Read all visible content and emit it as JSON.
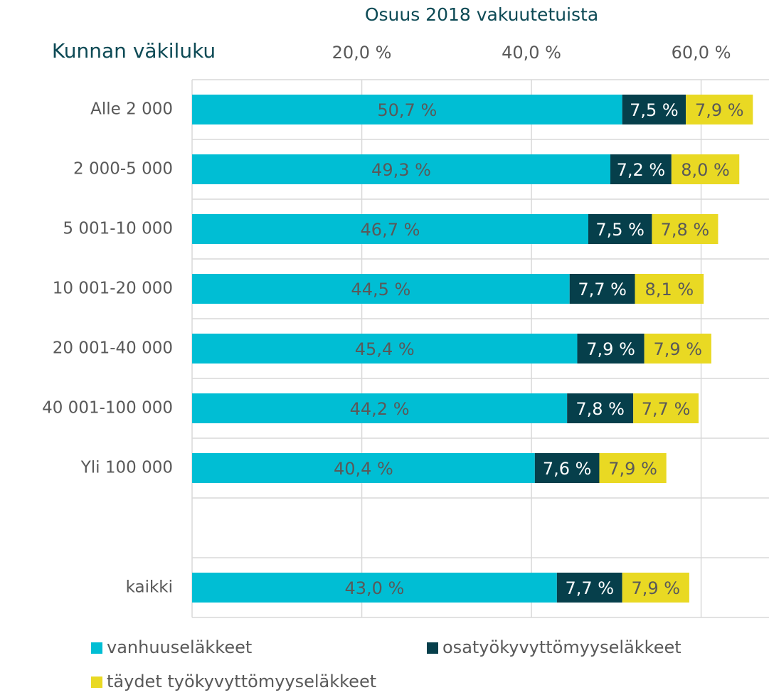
{
  "chart_data": {
    "type": "stacked_barh",
    "title": "Osuus 2018 vakuutetuista",
    "y_label": "Kunnan väkiluku",
    "categories": [
      "Alle 2 000",
      "2 000-5 000",
      "5 001-10 000",
      "10 001-20 000",
      "20 001-40 000",
      "40 001-100 000",
      "Yli 100 000",
      null,
      "kaikki"
    ],
    "series": [
      {
        "name": "vanhuuseläkkeet",
        "color": "#00bed4",
        "label_color": "#595959",
        "values": [
          50.7,
          49.3,
          46.7,
          44.5,
          45.4,
          44.2,
          40.4,
          null,
          43.0
        ],
        "value_labels": [
          "50,7 %",
          "49,3 %",
          "46,7 %",
          "44,5 %",
          "45,4 %",
          "44,2 %",
          "40,4 %",
          null,
          "43,0 %"
        ]
      },
      {
        "name": "osatyökyvyttömyyseläkkeet",
        "color": "#063f4b",
        "label_color": "#ffffff",
        "values": [
          7.5,
          7.2,
          7.5,
          7.7,
          7.9,
          7.8,
          7.6,
          null,
          7.7
        ],
        "value_labels": [
          "7,5 %",
          "7,2 %",
          "7,5 %",
          "7,7 %",
          "7,9 %",
          "7,8 %",
          "7,6 %",
          null,
          "7,7 %"
        ]
      },
      {
        "name": "täydet työkyvyttömyyseläkkeet",
        "color": "#e9d923",
        "label_color": "#595959",
        "values": [
          7.9,
          8.0,
          7.8,
          8.1,
          7.9,
          7.7,
          7.9,
          null,
          7.9
        ],
        "value_labels": [
          "7,9 %",
          "8,0 %",
          "7,8 %",
          "8,1 %",
          "7,9 %",
          "7,7 %",
          "7,9 %",
          null,
          "7,9 %"
        ]
      }
    ],
    "xlim": [
      0,
      68
    ],
    "xticks": [
      {
        "value": 20,
        "label": "20,0 %"
      },
      {
        "value": 40,
        "label": "40,0 %"
      },
      {
        "value": 60,
        "label": "60,0 %"
      }
    ],
    "grid": true,
    "legend": "bottom"
  }
}
